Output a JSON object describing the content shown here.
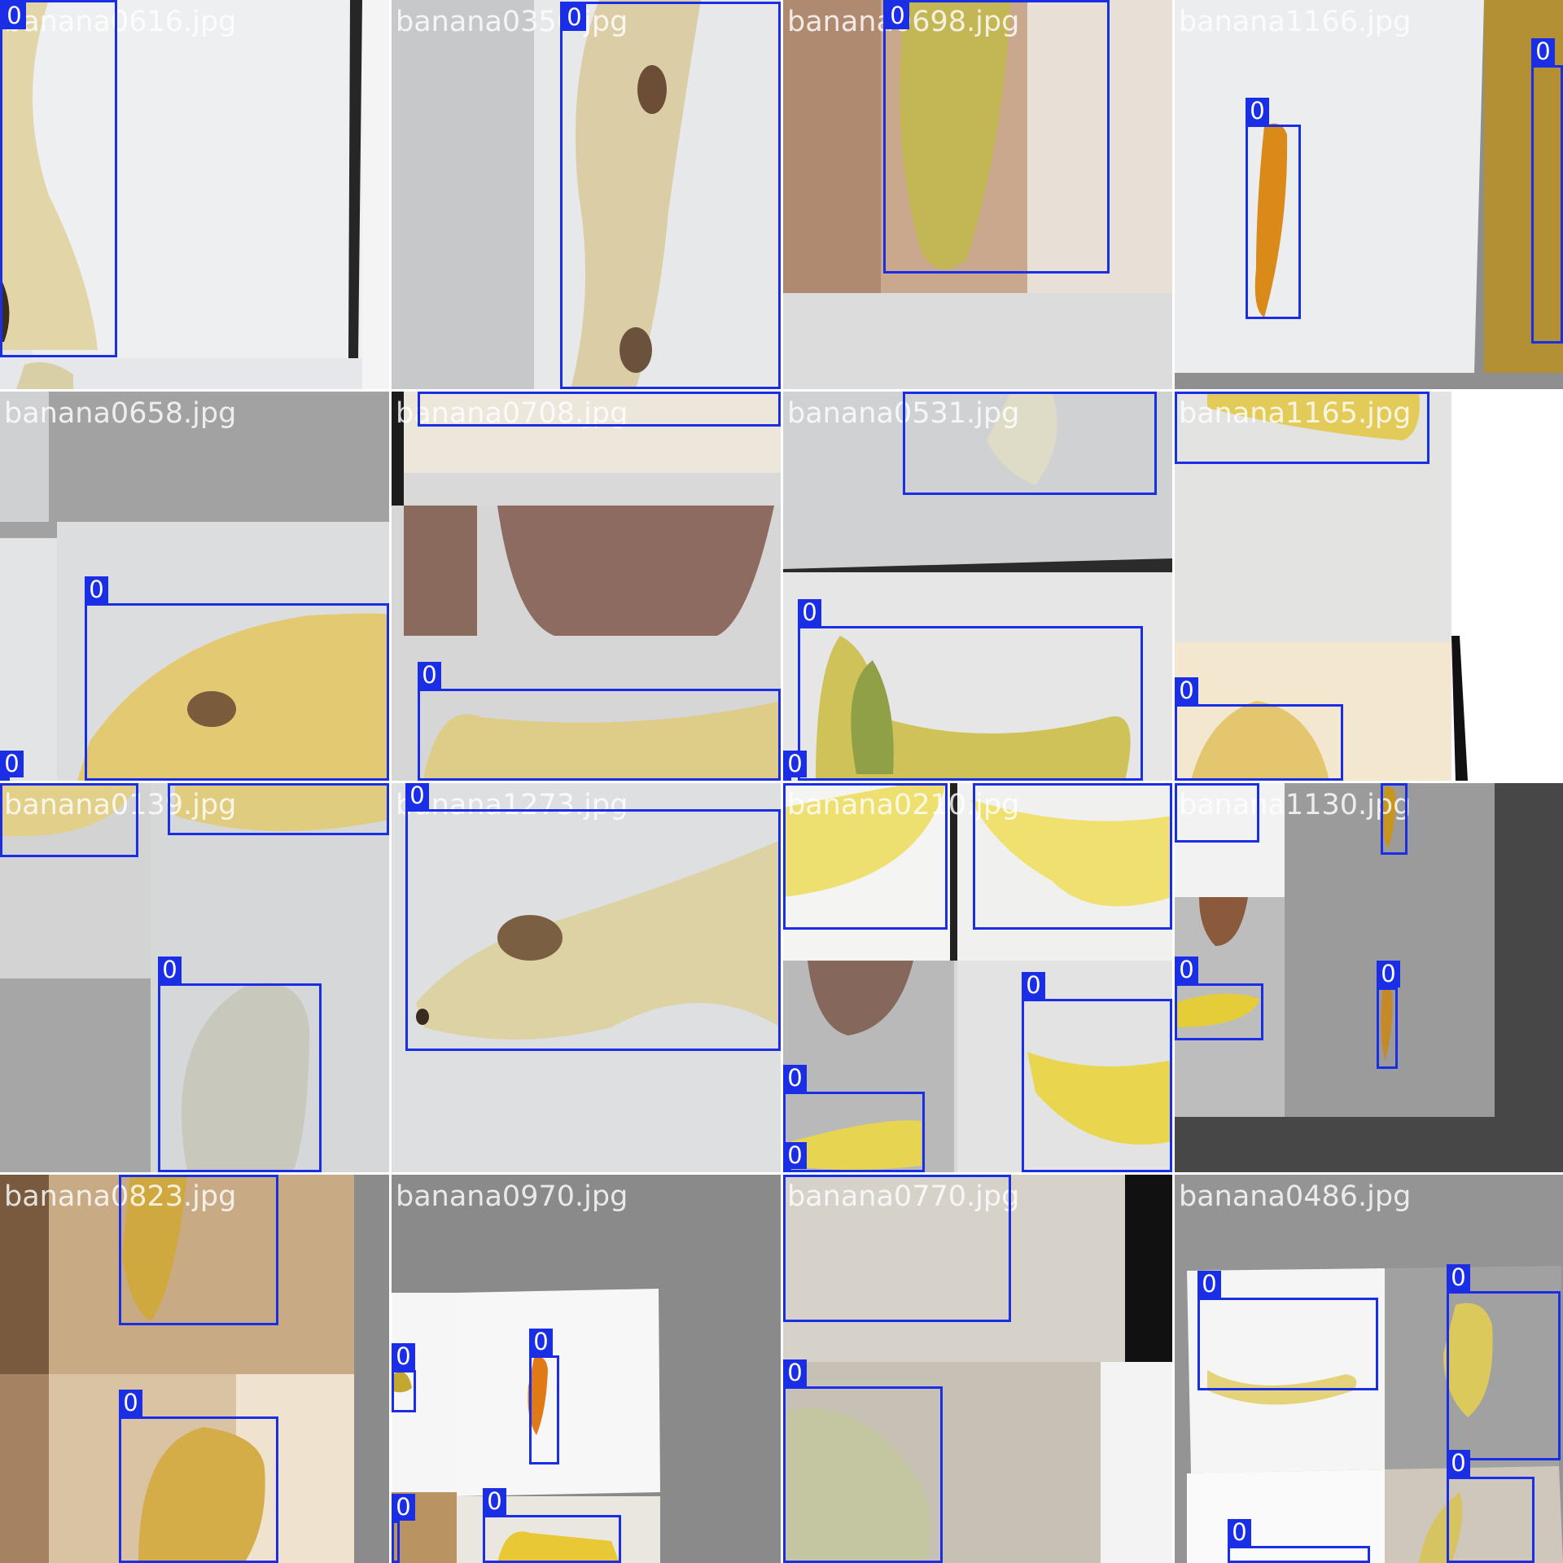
{
  "colors": {
    "box": "#1a2ee6",
    "label_text": "#ffffff",
    "filename_text": "#ffffff"
  },
  "tiles": [
    {
      "filename": "banana0616.jpg",
      "detections": [
        {
          "class_label": "0"
        }
      ]
    },
    {
      "filename": "banana0350.jpg",
      "detections": [
        {
          "class_label": "0"
        }
      ]
    },
    {
      "filename": "banana0698.jpg",
      "detections": [
        {
          "class_label": "0"
        }
      ]
    },
    {
      "filename": "banana1166.jpg",
      "detections": [
        {
          "class_label": "0"
        },
        {
          "class_label": "0"
        }
      ]
    },
    {
      "filename": "banana0658.jpg",
      "detections": [
        {
          "class_label": "0"
        },
        {
          "class_label": "0"
        }
      ]
    },
    {
      "filename": "banana0708.jpg",
      "detections": [
        {
          "class_label": "0"
        },
        {
          "class_label": "0"
        }
      ]
    },
    {
      "filename": "banana0531.jpg",
      "detections": [
        {
          "class_label": "0"
        },
        {
          "class_label": "0"
        },
        {
          "class_label": "0"
        }
      ]
    },
    {
      "filename": "banana1165.jpg",
      "detections": [
        {
          "class_label": "0"
        },
        {
          "class_label": "0"
        }
      ]
    },
    {
      "filename": "banana0139.jpg",
      "detections": [
        {
          "class_label": "0"
        },
        {
          "class_label": "0"
        },
        {
          "class_label": "0"
        }
      ]
    },
    {
      "filename": "banana1273.jpg",
      "detections": [
        {
          "class_label": "0"
        }
      ]
    },
    {
      "filename": "banana0210.jpg",
      "detections": [
        {
          "class_label": "0"
        },
        {
          "class_label": "0"
        },
        {
          "class_label": "0"
        },
        {
          "class_label": "0"
        },
        {
          "class_label": "0"
        }
      ]
    },
    {
      "filename": "banana1130.jpg",
      "detections": [
        {
          "class_label": "0"
        },
        {
          "class_label": "0"
        },
        {
          "class_label": "0"
        },
        {
          "class_label": "0"
        }
      ]
    },
    {
      "filename": "banana0823.jpg",
      "detections": [
        {
          "class_label": "0"
        },
        {
          "class_label": "0"
        }
      ]
    },
    {
      "filename": "banana0970.jpg",
      "detections": [
        {
          "class_label": "0"
        },
        {
          "class_label": "0"
        },
        {
          "class_label": "0"
        },
        {
          "class_label": "0"
        }
      ]
    },
    {
      "filename": "banana0770.jpg",
      "detections": [
        {
          "class_label": "0"
        },
        {
          "class_label": "0"
        }
      ]
    },
    {
      "filename": "banana0486.jpg",
      "detections": [
        {
          "class_label": "0"
        },
        {
          "class_label": "0"
        },
        {
          "class_label": "0"
        },
        {
          "class_label": "0"
        }
      ]
    }
  ]
}
